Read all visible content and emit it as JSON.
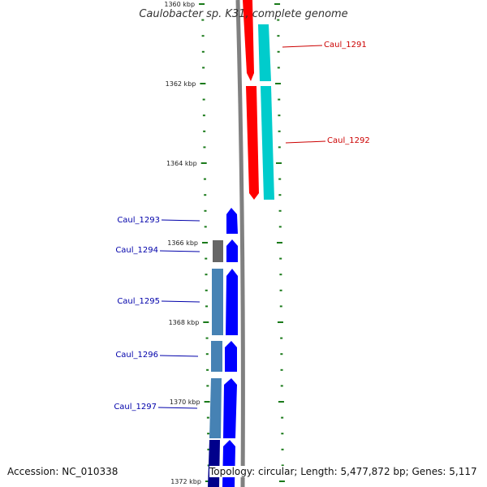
{
  "title": "Caulobacter sp. K31, complete genome",
  "accession": "Accession: NC_010338",
  "topology": "Topology: circular; Length: 5,477,872 bp; Genes: 5,117",
  "ruler_labels": [
    "1360 kbp",
    "1362 kbp",
    "1364 kbp",
    "1366 kbp",
    "1368 kbp",
    "1370 kbp",
    "1372 kbp"
  ],
  "colors": {
    "backbone": "#808080",
    "tick": "#1a7a1a",
    "forward_gene": "#ff0000",
    "forward_cds": "#00cccc",
    "reverse_gene": "#0000ff",
    "reverse_cds": "#4682b4",
    "reverse_cds_dark": "#00008b",
    "pseudo": "#666666",
    "forward_label": "#cc0000",
    "reverse_label": "#0000aa"
  },
  "genes": [
    {
      "label": "Caul_1291",
      "strand": "forward"
    },
    {
      "label": "Caul_1292",
      "strand": "forward"
    },
    {
      "label": "Caul_1293",
      "strand": "reverse"
    },
    {
      "label": "Caul_1294",
      "strand": "reverse"
    },
    {
      "label": "Caul_1295",
      "strand": "reverse"
    },
    {
      "label": "Caul_1296",
      "strand": "reverse"
    },
    {
      "label": "Caul_1297",
      "strand": "reverse"
    }
  ]
}
